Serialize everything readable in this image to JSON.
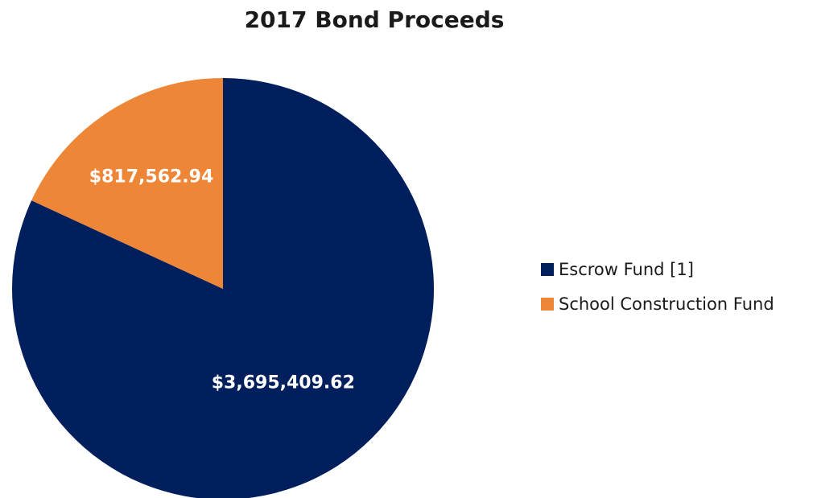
{
  "chart_data": {
    "type": "pie",
    "title": "2017 Bond Proceeds",
    "slices": [
      {
        "name": "Escrow Fund [1]",
        "value": 3695409.62,
        "label": "$3,695,409.62",
        "color": "#001F5C"
      },
      {
        "name": "School Construction Fund",
        "value": 817562.94,
        "label": "$817,562.94",
        "color": "#EE8638"
      }
    ],
    "legend_position": "right"
  }
}
